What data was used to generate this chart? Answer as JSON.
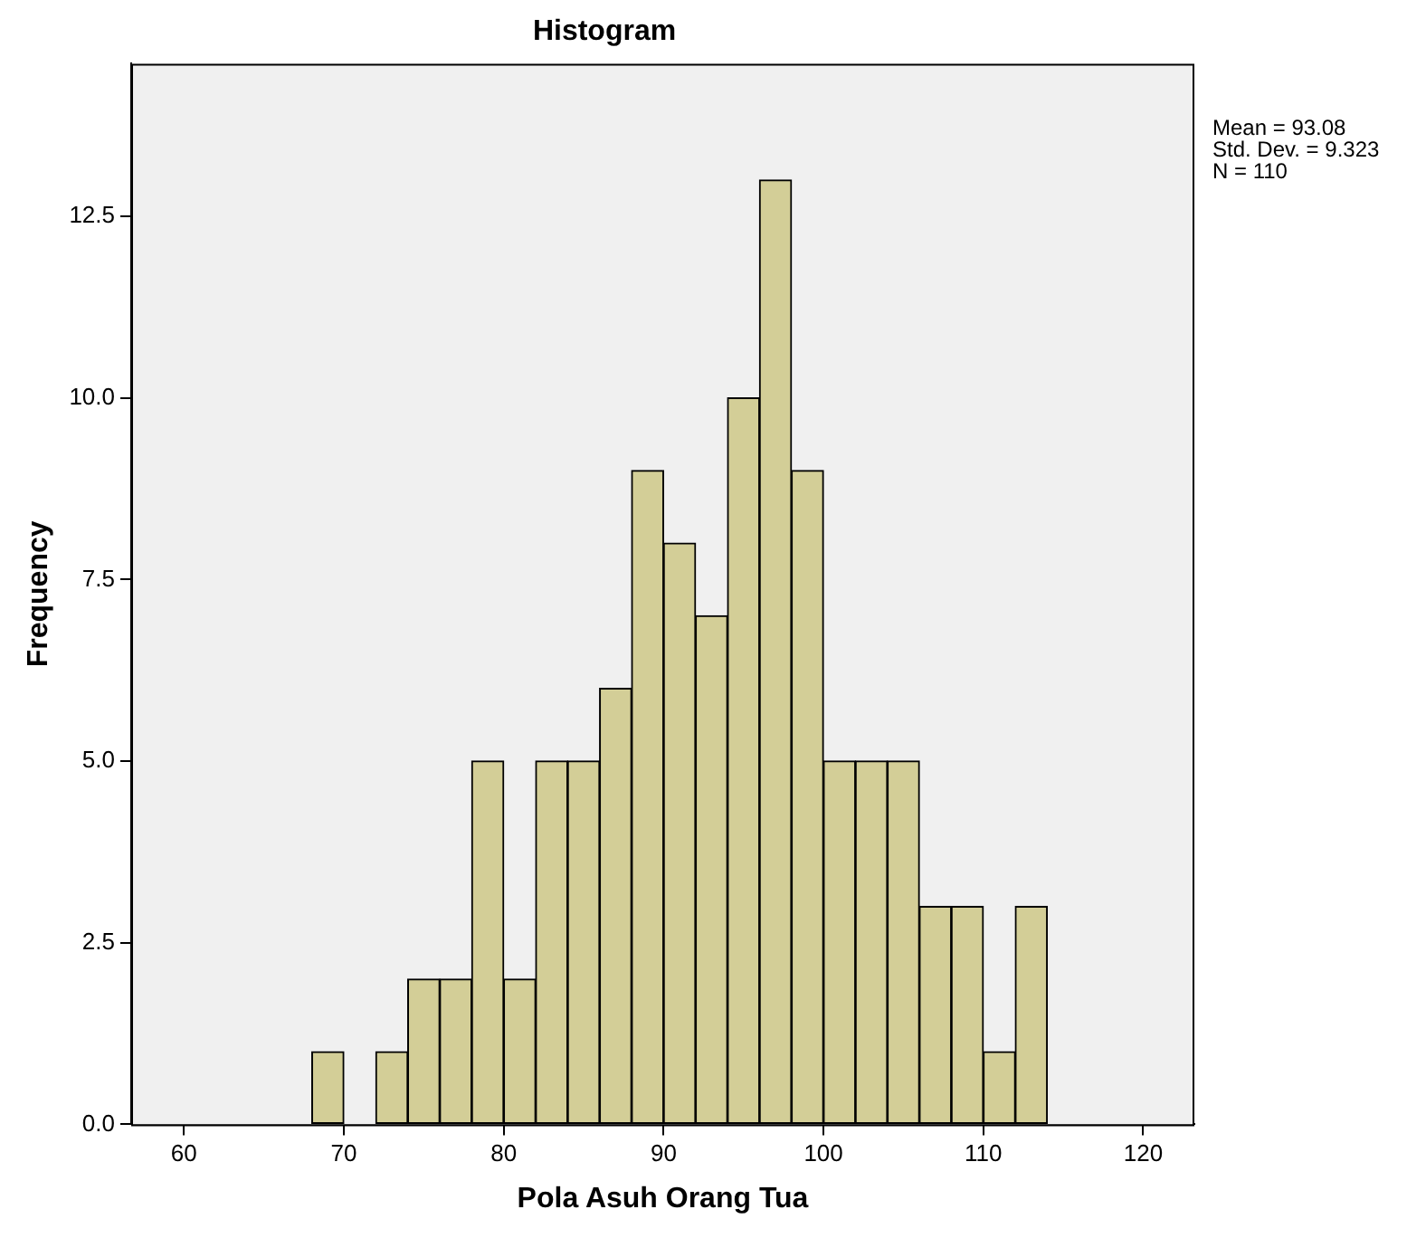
{
  "chart_data": {
    "type": "histogram",
    "title": "Histogram",
    "xlabel": "Pola Asuh Orang Tua",
    "ylabel": "Frequency",
    "bins": [
      68,
      70,
      72,
      74,
      76,
      78,
      80,
      82,
      84,
      86,
      88,
      90,
      92,
      94,
      96,
      98,
      100,
      102,
      104,
      106,
      108,
      110,
      112,
      114
    ],
    "values": [
      1,
      0,
      1,
      2,
      2,
      5,
      2,
      5,
      5,
      6,
      9,
      8,
      7,
      10,
      13,
      9,
      5,
      5,
      5,
      3,
      3,
      1,
      3
    ],
    "color": "#d3ce97",
    "xlim": [
      56.7,
      123.2
    ],
    "xticks": [
      60,
      70,
      80,
      90,
      100,
      110,
      120
    ],
    "ylim": [
      0,
      14.6
    ],
    "yticks": [
      {
        "value": 0,
        "label": "0.0"
      },
      {
        "value": 2.5,
        "label": "2.5"
      },
      {
        "value": 5,
        "label": "5.0"
      },
      {
        "value": 7.5,
        "label": "7.5"
      },
      {
        "value": 10,
        "label": "10.0"
      },
      {
        "value": 12.5,
        "label": "12.5"
      }
    ],
    "grid": false,
    "legend": false,
    "annotations": [
      "Mean = 93.08",
      "Std. Dev. = 9.323",
      "N = 110"
    ]
  }
}
